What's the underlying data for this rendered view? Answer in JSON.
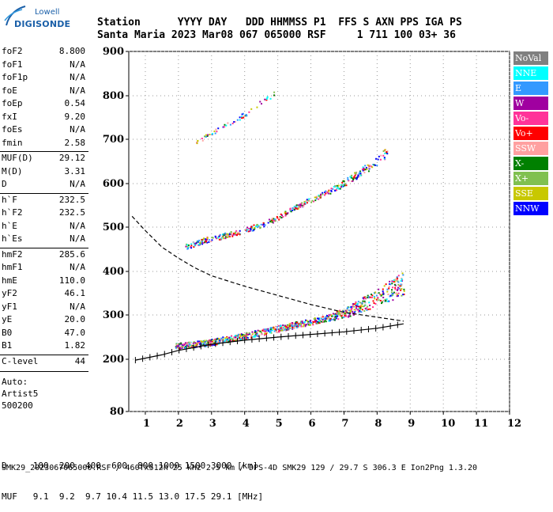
{
  "logo": {
    "line1": "Lowell",
    "line2": "DIGISONDE"
  },
  "header": {
    "line1": "Station      YYYY DAY   DDD HHMMSS P1  FFS S AXN PPS IGA PS",
    "line2": "Santa Maria 2023 Mar08 067 065000 RSF     1 711 100 03+ 36"
  },
  "params": [
    {
      "label": "foF2",
      "value": "8.800"
    },
    {
      "label": "foF1",
      "value": "N/A"
    },
    {
      "label": "foF1p",
      "value": "N/A"
    },
    {
      "label": "foE",
      "value": "N/A"
    },
    {
      "label": "foEp",
      "value": "0.54"
    },
    {
      "label": "fxI",
      "value": "9.20"
    },
    {
      "label": "foEs",
      "value": "N/A"
    },
    {
      "label": "fmin",
      "value": "2.58"
    },
    {
      "label": "MUF(D)",
      "value": "29.12"
    },
    {
      "label": "M(D)",
      "value": "3.31"
    },
    {
      "label": "D",
      "value": "N/A"
    },
    {
      "label": "h`F",
      "value": "232.5"
    },
    {
      "label": "h`F2",
      "value": "232.5"
    },
    {
      "label": "h`E",
      "value": "N/A"
    },
    {
      "label": "h`Es",
      "value": "N/A"
    },
    {
      "label": "hmF2",
      "value": "285.6"
    },
    {
      "label": "hmF1",
      "value": "N/A"
    },
    {
      "label": "hmE",
      "value": "110.0"
    },
    {
      "label": "yF2",
      "value": "46.1"
    },
    {
      "label": "yF1",
      "value": "N/A"
    },
    {
      "label": "yE",
      "value": "20.0"
    },
    {
      "label": "B0",
      "value": "47.0"
    },
    {
      "label": "B1",
      "value": "1.82"
    },
    {
      "label": "C-level",
      "value": "44"
    }
  ],
  "auto": {
    "line1": "Auto:",
    "line2": "Artist5",
    "line3": "500200"
  },
  "legend": [
    {
      "label": "NoVal",
      "color": "#808080"
    },
    {
      "label": "NNE",
      "color": "#00ffff"
    },
    {
      "label": "E",
      "color": "#3399ff"
    },
    {
      "label": "W",
      "color": "#a000a0"
    },
    {
      "label": "Vo-",
      "color": "#ff3399"
    },
    {
      "label": "Vo+",
      "color": "#ff0000"
    },
    {
      "label": "SSW",
      "color": "#ffa0a0"
    },
    {
      "label": "X-",
      "color": "#008000"
    },
    {
      "label": "X+",
      "color": "#80c050"
    },
    {
      "label": "SSE",
      "color": "#c8c800"
    },
    {
      "label": "NNW",
      "color": "#0000ff"
    }
  ],
  "bottom": {
    "d_line": "D     100  200  400  600  800 1000 1500 3000 [km]",
    "muf_line": "MUF   9.1  9.2  9.7 10.4 11.5 13.0 17.5 29.1 [MHz]"
  },
  "footer": "SMK29_2023067065000.RSF / 460fx512h 25 kHz 2.5 km / DPS-4D SMK29 129 / 29.7 S 306.3 E Ion2Png 1.3.20",
  "chart_data": {
    "type": "scatter",
    "xlim": [
      0.5,
      12
    ],
    "ylim": [
      80,
      900
    ],
    "x_ticks": [
      1,
      2,
      3,
      4,
      5,
      6,
      7,
      8,
      9,
      10,
      11,
      12
    ],
    "y_ticks": [
      80,
      200,
      300,
      400,
      500,
      600,
      700,
      800,
      900
    ],
    "grid": true,
    "series": [
      {
        "name": "O-trace",
        "points": [
          [
            1.9,
            228
          ],
          [
            2.5,
            233
          ],
          [
            3.0,
            238
          ],
          [
            3.5,
            245
          ],
          [
            4.0,
            252
          ],
          [
            4.5,
            260
          ],
          [
            5.0,
            268
          ],
          [
            5.5,
            276
          ],
          [
            6.0,
            284
          ],
          [
            6.5,
            292
          ],
          [
            7.0,
            302
          ],
          [
            7.5,
            318
          ],
          [
            8.0,
            335
          ],
          [
            8.5,
            355
          ],
          [
            8.8,
            368
          ]
        ]
      },
      {
        "name": "F-2hop",
        "points": [
          [
            2.2,
            455
          ],
          [
            2.8,
            470
          ],
          [
            3.5,
            482
          ],
          [
            4.0,
            492
          ],
          [
            4.5,
            505
          ],
          [
            5.0,
            520
          ],
          [
            5.3,
            535
          ],
          [
            5.8,
            555
          ],
          [
            6.5,
            580
          ],
          [
            7.0,
            600
          ],
          [
            7.5,
            625
          ],
          [
            8.0,
            650
          ],
          [
            8.3,
            670
          ]
        ]
      },
      {
        "name": "F-3hop",
        "points": [
          [
            2.5,
            692
          ],
          [
            3.0,
            715
          ],
          [
            3.5,
            735
          ],
          [
            4.0,
            757
          ],
          [
            4.5,
            785
          ],
          [
            5.0,
            810
          ]
        ]
      },
      {
        "name": "profile",
        "points": [
          [
            0.6,
            525
          ],
          [
            1.0,
            492
          ],
          [
            1.5,
            455
          ],
          [
            2.0,
            430
          ],
          [
            2.5,
            408
          ],
          [
            3.0,
            390
          ],
          [
            4.0,
            366
          ],
          [
            5.0,
            345
          ],
          [
            6.0,
            324
          ],
          [
            7.0,
            306
          ],
          [
            8.0,
            295
          ],
          [
            8.8,
            286
          ]
        ]
      },
      {
        "name": "virtual-height",
        "points": [
          [
            0.7,
            198
          ],
          [
            1.5,
            210
          ],
          [
            2.0,
            220
          ],
          [
            3.0,
            234
          ],
          [
            4.0,
            243
          ],
          [
            5.0,
            250
          ],
          [
            6.0,
            256
          ],
          [
            7.0,
            262
          ],
          [
            8.0,
            270
          ],
          [
            8.8,
            280
          ]
        ]
      }
    ]
  }
}
